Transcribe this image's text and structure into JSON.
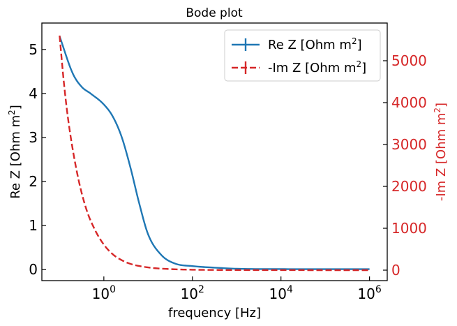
{
  "chart_data": {
    "type": "line",
    "title": "Bode plot",
    "xlabel": "frequency [Hz]",
    "x_scale": "log",
    "xlim_log10": [
      -1.4,
      6.4
    ],
    "x_ticks": [
      {
        "exp": 0,
        "label": "10",
        "sup": "0"
      },
      {
        "exp": 2,
        "label": "10",
        "sup": "2"
      },
      {
        "exp": 4,
        "label": "10",
        "sup": "4"
      },
      {
        "exp": 6,
        "label": "10",
        "sup": "6"
      }
    ],
    "left_axis": {
      "label": "Re Z [Ohm m",
      "label_sup": "2",
      "label_end": "]",
      "ylim": [
        -0.25,
        5.6
      ],
      "ticks": [
        0,
        1,
        2,
        3,
        4,
        5
      ]
    },
    "right_axis": {
      "label": "-Im Z [Ohm m",
      "label_sup": "2",
      "label_end": "]",
      "ylim": [
        -250,
        5900
      ],
      "ticks": [
        0,
        1000,
        2000,
        3000,
        4000,
        5000
      ],
      "color": "#d62728"
    },
    "legend_position": "upper-right",
    "series": [
      {
        "name": "Re Z [Ohm m",
        "name_sup": "2",
        "name_end": "]",
        "axis": "left",
        "color": "#1f77b4",
        "dash": "solid",
        "log10_freq": [
          -1,
          -0.7,
          -0.5,
          -0.3,
          0,
          0.2,
          0.4,
          0.6,
          0.8,
          1,
          1.3,
          1.6,
          2,
          2.5,
          3,
          4,
          5,
          6
        ],
        "values": [
          5.3,
          4.45,
          4.15,
          4.0,
          3.75,
          3.48,
          3.02,
          2.32,
          1.5,
          0.8,
          0.33,
          0.14,
          0.08,
          0.045,
          0.02,
          0.012,
          0.01,
          0.01
        ]
      },
      {
        "name": "-Im Z [Ohm m",
        "name_sup": "2",
        "name_end": "]",
        "axis": "right",
        "color": "#d62728",
        "dash": "dashed",
        "log10_freq": [
          -1,
          -0.9,
          -0.8,
          -0.6,
          -0.4,
          -0.2,
          0,
          0.2,
          0.4,
          0.6,
          1,
          1.5,
          2,
          3,
          4,
          5,
          6
        ],
        "values": [
          5600,
          4450,
          3550,
          2300,
          1470,
          960,
          610,
          380,
          240,
          150,
          65,
          25,
          10,
          3,
          1,
          0,
          0
        ]
      }
    ]
  }
}
